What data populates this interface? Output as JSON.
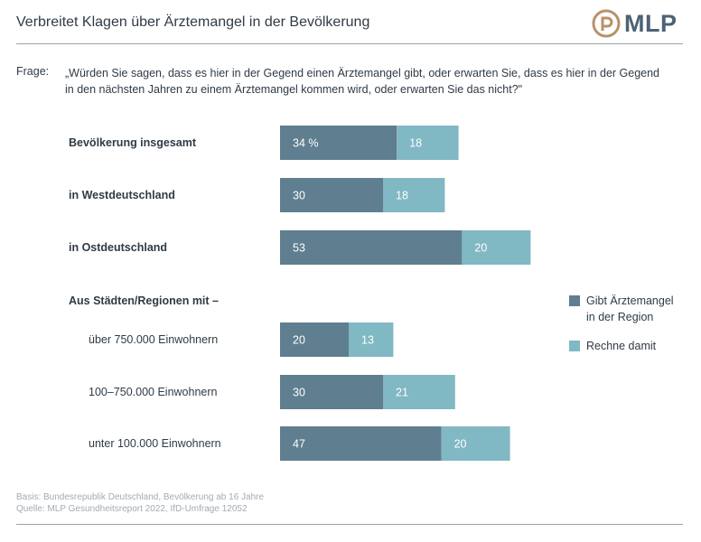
{
  "header": {
    "title": "Verbreitet Klagen über Ärztemangel in der Bevölkerung",
    "logo_text": "MLP"
  },
  "question": {
    "label": "Frage:",
    "line1": "„Würden Sie sagen, dass es hier in der Gegend einen Ärztemangel gibt, oder erwarten Sie, dass es hier in der Gegend",
    "line2": "in den nächsten Jahren zu einem Ärztemangel kommen wird, oder erwarten Sie das nicht?\""
  },
  "group_heading": "Aus Städten/Regionen mit –",
  "legend": {
    "item1_line1": "Gibt Ärztemangel",
    "item1_line2": "in der Region",
    "item2": "Rechne damit"
  },
  "footer": {
    "basis": "Basis: Bundesrepublik Deutschland, Bevölkerung ab 16 Jahre",
    "source": "Quelle: MLP Gesundheitsreport 2022, IfD-Umfrage 12052"
  },
  "colors": {
    "series1": "#5f7e8f",
    "series2": "#80b8c4",
    "text_on_bar": "#ffffff"
  },
  "chart_data": {
    "type": "bar",
    "orientation": "horizontal",
    "stacked": true,
    "unit": "%",
    "categories": [
      "Bevölkerung insgesamt",
      "in Westdeutschland",
      "in Ostdeutschland",
      "über 750.000 Einwohnern",
      "100–750.000 Einwohnern",
      "unter 100.000 Einwohnern"
    ],
    "series": [
      {
        "name": "Gibt Ärztemangel in der Region",
        "values": [
          34,
          30,
          53,
          20,
          30,
          47
        ]
      },
      {
        "name": "Rechne damit",
        "values": [
          18,
          18,
          20,
          13,
          21,
          20
        ]
      }
    ],
    "value_labels": [
      [
        "34 %",
        "30",
        "53",
        "20",
        "30",
        "47"
      ],
      [
        "18",
        "18",
        "20",
        "13",
        "21",
        "20"
      ]
    ],
    "legend_position": "right",
    "grid": false
  }
}
